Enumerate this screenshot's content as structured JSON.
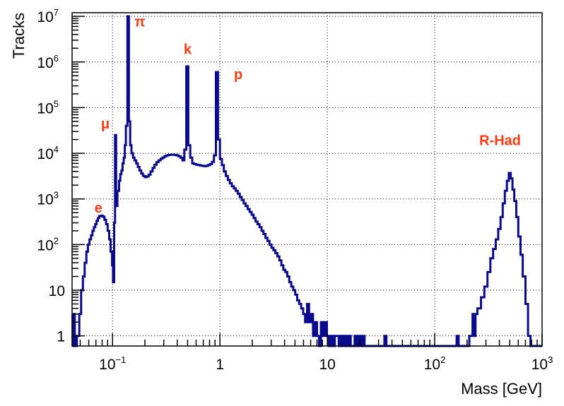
{
  "chart_data": {
    "type": "histogram",
    "xlabel": "Mass [GeV]",
    "ylabel": "Tracks",
    "x_scale": "log",
    "y_scale": "log",
    "xlim": [
      0.042,
      1000
    ],
    "ylim": [
      0.6,
      12000000
    ],
    "grid": true,
    "line_color": "#0a0a8c",
    "annotation_color": "#ff3b14",
    "x_ticks": [
      {
        "value": 0.1,
        "base": "10",
        "exp": "−1"
      },
      {
        "value": 1,
        "base": "1",
        "exp": ""
      },
      {
        "value": 10,
        "base": "10",
        "exp": ""
      },
      {
        "value": 100,
        "base": "10",
        "exp": "2"
      },
      {
        "value": 1000,
        "base": "10",
        "exp": "3"
      }
    ],
    "y_ticks": [
      {
        "value": 1,
        "base": "1",
        "exp": ""
      },
      {
        "value": 10,
        "base": "10",
        "exp": ""
      },
      {
        "value": 100,
        "base": "10",
        "exp": "2"
      },
      {
        "value": 1000,
        "base": "10",
        "exp": "3"
      },
      {
        "value": 10000,
        "base": "10",
        "exp": "4"
      },
      {
        "value": 100000,
        "base": "10",
        "exp": "5"
      },
      {
        "value": 1000000,
        "base": "10",
        "exp": "6"
      },
      {
        "value": 10000000,
        "base": "10",
        "exp": "7"
      }
    ],
    "annotations": [
      {
        "text": "e",
        "x": 0.068,
        "y": 500
      },
      {
        "text": "μ",
        "x": 0.078,
        "y": 35000
      },
      {
        "text": "π",
        "x": 0.16,
        "y": 6000000
      },
      {
        "text": "k",
        "x": 0.46,
        "y": 1500000
      },
      {
        "text": "p",
        "x": 1.35,
        "y": 420000
      },
      {
        "text": "R-Had",
        "x": 260,
        "y": 15000
      }
    ],
    "series": [
      {
        "points": [
          [
            0.042,
            0.5
          ],
          [
            0.0425,
            3
          ],
          [
            0.0445,
            0.5
          ],
          [
            0.0465,
            1
          ],
          [
            0.049,
            3
          ],
          [
            0.051,
            10
          ],
          [
            0.053,
            20
          ],
          [
            0.055,
            40
          ],
          [
            0.057,
            70
          ],
          [
            0.059,
            100
          ],
          [
            0.061,
            130
          ],
          [
            0.063,
            160
          ],
          [
            0.065,
            200
          ],
          [
            0.067,
            240
          ],
          [
            0.069,
            280
          ],
          [
            0.071,
            330
          ],
          [
            0.073,
            380
          ],
          [
            0.075,
            420
          ],
          [
            0.078,
            430
          ],
          [
            0.081,
            410
          ],
          [
            0.084,
            350
          ],
          [
            0.087,
            280
          ],
          [
            0.09,
            200
          ],
          [
            0.093,
            130
          ],
          [
            0.096,
            70
          ],
          [
            0.099,
            35
          ],
          [
            0.101,
            15
          ],
          [
            0.1035,
            300
          ],
          [
            0.1055,
            25000
          ],
          [
            0.108,
            700
          ],
          [
            0.111,
            1500
          ],
          [
            0.115,
            2500
          ],
          [
            0.118,
            3500
          ],
          [
            0.121,
            4200
          ],
          [
            0.124,
            6000
          ],
          [
            0.127,
            8000
          ],
          [
            0.13,
            15000
          ],
          [
            0.133,
            40000
          ],
          [
            0.1375,
            10000000
          ],
          [
            0.142,
            50000
          ],
          [
            0.146,
            15000
          ],
          [
            0.15,
            10000
          ],
          [
            0.155,
            8000
          ],
          [
            0.16,
            7000
          ],
          [
            0.166,
            6000
          ],
          [
            0.172,
            5000
          ],
          [
            0.178,
            4200
          ],
          [
            0.185,
            3600
          ],
          [
            0.192,
            3200
          ],
          [
            0.2,
            3000
          ],
          [
            0.208,
            3100
          ],
          [
            0.217,
            3400
          ],
          [
            0.226,
            4000
          ],
          [
            0.236,
            4800
          ],
          [
            0.246,
            5600
          ],
          [
            0.257,
            6400
          ],
          [
            0.268,
            7000
          ],
          [
            0.28,
            7600
          ],
          [
            0.292,
            8100
          ],
          [
            0.305,
            8600
          ],
          [
            0.318,
            9000
          ],
          [
            0.332,
            9200
          ],
          [
            0.347,
            9300
          ],
          [
            0.362,
            9300
          ],
          [
            0.378,
            9200
          ],
          [
            0.394,
            9000
          ],
          [
            0.411,
            8600
          ],
          [
            0.429,
            8000
          ],
          [
            0.447,
            7000
          ],
          [
            0.466,
            12000
          ],
          [
            0.486,
            800000
          ],
          [
            0.507,
            15000
          ],
          [
            0.529,
            8000
          ],
          [
            0.552,
            6000
          ],
          [
            0.576,
            5800
          ],
          [
            0.601,
            5600
          ],
          [
            0.627,
            5500
          ],
          [
            0.654,
            5400
          ],
          [
            0.682,
            5300
          ],
          [
            0.712,
            5200
          ],
          [
            0.743,
            5300
          ],
          [
            0.775,
            5500
          ],
          [
            0.808,
            5800
          ],
          [
            0.843,
            6500
          ],
          [
            0.88,
            9000
          ],
          [
            0.918,
            600000
          ],
          [
            0.958,
            20000
          ],
          [
            1.0,
            7500
          ],
          [
            1.043,
            5500
          ],
          [
            1.088,
            4000
          ],
          [
            1.135,
            3200
          ],
          [
            1.185,
            2600
          ],
          [
            1.236,
            2200
          ],
          [
            1.29,
            1900
          ],
          [
            1.346,
            1700
          ],
          [
            1.404,
            1500
          ],
          [
            1.465,
            1300
          ],
          [
            1.529,
            1100
          ],
          [
            1.595,
            950
          ],
          [
            1.664,
            800
          ],
          [
            1.737,
            700
          ],
          [
            1.812,
            600
          ],
          [
            1.891,
            520
          ],
          [
            1.973,
            450
          ],
          [
            2.058,
            380
          ],
          [
            2.148,
            320
          ],
          [
            2.241,
            280
          ],
          [
            2.338,
            240
          ],
          [
            2.44,
            200
          ],
          [
            2.546,
            170
          ],
          [
            2.656,
            140
          ],
          [
            2.771,
            120
          ],
          [
            2.892,
            100
          ],
          [
            3.017,
            85
          ],
          [
            3.148,
            75
          ],
          [
            3.285,
            65
          ],
          [
            3.427,
            55
          ],
          [
            3.576,
            45
          ],
          [
            3.731,
            35
          ],
          [
            3.893,
            28
          ],
          [
            4.062,
            25
          ],
          [
            4.238,
            20
          ],
          [
            4.422,
            15
          ],
          [
            4.614,
            12
          ],
          [
            4.814,
            10
          ],
          [
            5.023,
            8
          ],
          [
            5.241,
            6
          ],
          [
            5.468,
            5
          ],
          [
            5.706,
            4
          ],
          [
            5.953,
            3
          ],
          [
            6.211,
            2
          ],
          [
            6.481,
            5
          ],
          [
            6.762,
            2
          ],
          [
            7.056,
            3
          ],
          [
            7.362,
            1
          ],
          [
            7.681,
            2
          ],
          [
            8.015,
            1
          ],
          [
            8.362,
            0.5
          ],
          [
            8.725,
            2
          ],
          [
            9.104,
            1
          ],
          [
            9.499,
            2
          ],
          [
            9.911,
            1
          ],
          [
            10.341,
            0.5
          ],
          [
            10.79,
            1
          ],
          [
            11.258,
            0.5
          ],
          [
            11.746,
            1
          ],
          [
            12.256,
            1
          ],
          [
            12.788,
            0.5
          ],
          [
            13.342,
            1
          ],
          [
            13.921,
            0.5
          ],
          [
            14.525,
            1
          ],
          [
            15.155,
            0.5
          ],
          [
            15.813,
            1
          ],
          [
            16.499,
            0.5
          ],
          [
            17.215,
            0.5
          ],
          [
            17.962,
            1
          ],
          [
            18.742,
            0.5
          ],
          [
            19.555,
            1
          ],
          [
            20.403,
            0.5
          ],
          [
            21.288,
            1
          ],
          [
            22.212,
            0.5
          ],
          [
            23.176,
            0.5
          ],
          [
            34,
            1
          ],
          [
            35.5,
            0.5
          ],
          [
            160,
            1
          ],
          [
            167,
            0.5
          ],
          [
            200,
            0.5
          ],
          [
            210,
            1
          ],
          [
            225,
            3
          ],
          [
            232,
            1
          ],
          [
            240,
            3
          ],
          [
            250,
            4
          ],
          [
            270,
            7
          ],
          [
            290,
            12
          ],
          [
            310,
            25
          ],
          [
            330,
            50
          ],
          [
            350,
            80
          ],
          [
            370,
            130
          ],
          [
            390,
            220
          ],
          [
            410,
            400
          ],
          [
            430,
            800
          ],
          [
            450,
            1500
          ],
          [
            470,
            2500
          ],
          [
            490,
            3700
          ],
          [
            510,
            2800
          ],
          [
            530,
            1600
          ],
          [
            550,
            900
          ],
          [
            575,
            400
          ],
          [
            600,
            150
          ],
          [
            630,
            60
          ],
          [
            660,
            20
          ],
          [
            700,
            5
          ],
          [
            740,
            1
          ],
          [
            780,
            0.5
          ],
          [
            1000,
            0.5
          ]
        ]
      }
    ]
  }
}
